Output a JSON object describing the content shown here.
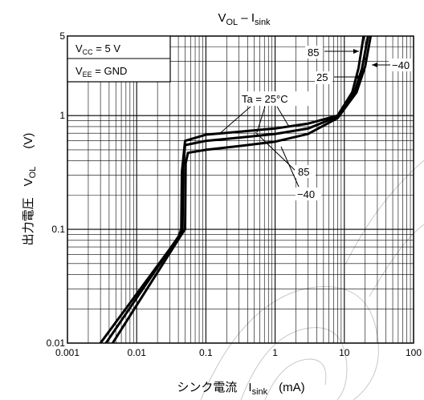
{
  "chart_data": {
    "type": "line",
    "title": {
      "main": "V",
      "main_sub": "OL",
      "dash": " – I",
      "dash_sub": "sink"
    },
    "x_scale": "log",
    "y_scale": "log",
    "xlim": [
      0.001,
      100
    ],
    "ylim": [
      0.01,
      5
    ],
    "x_ticks": [
      {
        "value": 0.001,
        "label": "0.001"
      },
      {
        "value": 0.01,
        "label": "0.01"
      },
      {
        "value": 0.1,
        "label": "0.1"
      },
      {
        "value": 1,
        "label": "1"
      },
      {
        "value": 10,
        "label": "10"
      },
      {
        "value": 100,
        "label": "100"
      }
    ],
    "y_ticks": [
      {
        "value": 0.01,
        "label": "0.01"
      },
      {
        "value": 0.1,
        "label": "0.1"
      },
      {
        "value": 1,
        "label": "1"
      },
      {
        "value": 5,
        "label": "5"
      }
    ],
    "xlabel": {
      "text": "シンク電流",
      "sym": "I",
      "sym_sub": "sink",
      "unit": "(mA)"
    },
    "ylabel": {
      "text": "出力電圧",
      "sym": "V",
      "sym_sub": "OL",
      "unit": "(V)"
    },
    "conditions": [
      {
        "sym": "V",
        "sub": "CC",
        "value": " = 5 V"
      },
      {
        "sym": "V",
        "sub": "EE",
        "value": " = GND"
      }
    ],
    "annotation_ta": "Ta = 25°C",
    "grid": true,
    "series": [
      {
        "name": "85",
        "points": [
          [
            0.003,
            0.01
          ],
          [
            0.04,
            0.085
          ],
          [
            0.044,
            0.1
          ],
          [
            0.045,
            0.32
          ],
          [
            0.05,
            0.6
          ],
          [
            0.1,
            0.68
          ],
          [
            0.3,
            0.72
          ],
          [
            1,
            0.77
          ],
          [
            3,
            0.85
          ],
          [
            8,
            1.0
          ],
          [
            13,
            1.6
          ],
          [
            16,
            2.6
          ],
          [
            19,
            5
          ]
        ]
      },
      {
        "name": "25",
        "points": [
          [
            0.0036,
            0.01
          ],
          [
            0.042,
            0.09
          ],
          [
            0.046,
            0.1
          ],
          [
            0.047,
            0.35
          ],
          [
            0.05,
            0.55
          ],
          [
            0.1,
            0.6
          ],
          [
            0.3,
            0.64
          ],
          [
            1,
            0.69
          ],
          [
            3,
            0.77
          ],
          [
            8,
            0.98
          ],
          [
            14,
            1.6
          ],
          [
            18,
            2.6
          ],
          [
            22,
            5
          ]
        ]
      },
      {
        "name": "-40",
        "points": [
          [
            0.0045,
            0.01
          ],
          [
            0.047,
            0.095
          ],
          [
            0.05,
            0.1
          ],
          [
            0.051,
            0.38
          ],
          [
            0.055,
            0.47
          ],
          [
            0.1,
            0.5
          ],
          [
            0.3,
            0.54
          ],
          [
            1,
            0.59
          ],
          [
            3,
            0.69
          ],
          [
            8,
            0.95
          ],
          [
            15,
            1.6
          ],
          [
            20,
            2.7
          ],
          [
            24,
            5
          ]
        ]
      }
    ],
    "series_labels": [
      {
        "text": "85"
      },
      {
        "text": "25"
      },
      {
        "text": "−40"
      },
      {
        "text": "85"
      },
      {
        "text": "−40"
      }
    ]
  }
}
